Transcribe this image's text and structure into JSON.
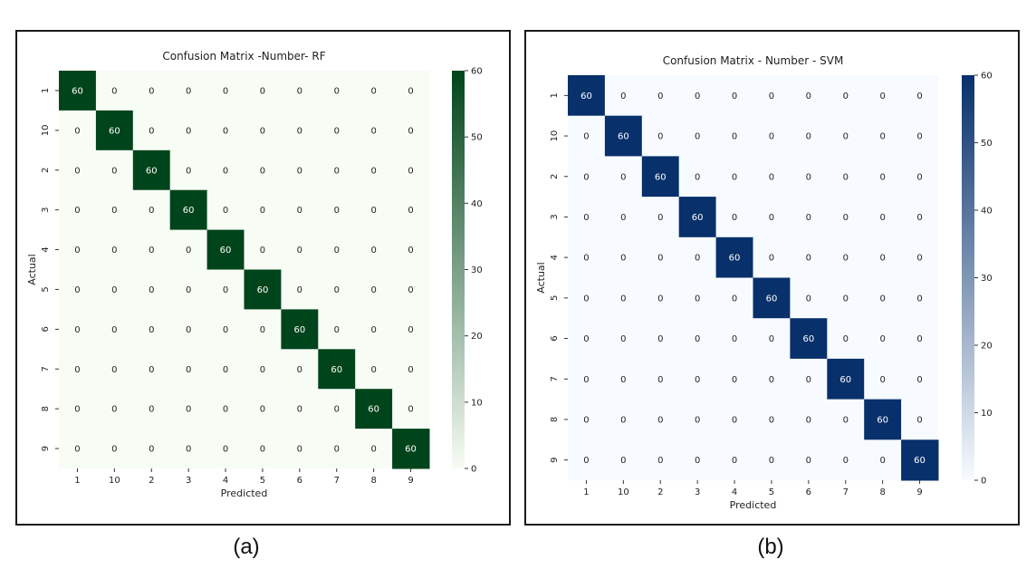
{
  "captions": {
    "a": "(a)",
    "b": "(b)"
  },
  "chart_data": [
    {
      "type": "heatmap",
      "title": "Confusion Matrix -Number- RF",
      "xlabel": "Predicted",
      "ylabel": "Actual",
      "x_categories": [
        "1",
        "10",
        "2",
        "3",
        "4",
        "5",
        "6",
        "7",
        "8",
        "9"
      ],
      "y_categories": [
        "1",
        "10",
        "2",
        "3",
        "4",
        "5",
        "6",
        "7",
        "8",
        "9"
      ],
      "values": [
        [
          60,
          0,
          0,
          0,
          0,
          0,
          0,
          0,
          0,
          0
        ],
        [
          0,
          60,
          0,
          0,
          0,
          0,
          0,
          0,
          0,
          0
        ],
        [
          0,
          0,
          60,
          0,
          0,
          0,
          0,
          0,
          0,
          0
        ],
        [
          0,
          0,
          0,
          60,
          0,
          0,
          0,
          0,
          0,
          0
        ],
        [
          0,
          0,
          0,
          0,
          60,
          0,
          0,
          0,
          0,
          0
        ],
        [
          0,
          0,
          0,
          0,
          0,
          60,
          0,
          0,
          0,
          0
        ],
        [
          0,
          0,
          0,
          0,
          0,
          0,
          60,
          0,
          0,
          0
        ],
        [
          0,
          0,
          0,
          0,
          0,
          0,
          0,
          60,
          0,
          0
        ],
        [
          0,
          0,
          0,
          0,
          0,
          0,
          0,
          0,
          60,
          0
        ],
        [
          0,
          0,
          0,
          0,
          0,
          0,
          0,
          0,
          0,
          60
        ]
      ],
      "colorbar": {
        "min": 0,
        "max": 60,
        "ticks": [
          0,
          10,
          20,
          30,
          40,
          50,
          60
        ]
      },
      "colormap": "Greens",
      "colors": {
        "low": "#f7fcf5",
        "high": "#00441b"
      }
    },
    {
      "type": "heatmap",
      "title": "Confusion Matrix - Number - SVM",
      "xlabel": "Predicted",
      "ylabel": "Actual",
      "x_categories": [
        "1",
        "10",
        "2",
        "3",
        "4",
        "5",
        "6",
        "7",
        "8",
        "9"
      ],
      "y_categories": [
        "1",
        "10",
        "2",
        "3",
        "4",
        "5",
        "6",
        "7",
        "8",
        "9"
      ],
      "values": [
        [
          60,
          0,
          0,
          0,
          0,
          0,
          0,
          0,
          0,
          0
        ],
        [
          0,
          60,
          0,
          0,
          0,
          0,
          0,
          0,
          0,
          0
        ],
        [
          0,
          0,
          60,
          0,
          0,
          0,
          0,
          0,
          0,
          0
        ],
        [
          0,
          0,
          0,
          60,
          0,
          0,
          0,
          0,
          0,
          0
        ],
        [
          0,
          0,
          0,
          0,
          60,
          0,
          0,
          0,
          0,
          0
        ],
        [
          0,
          0,
          0,
          0,
          0,
          60,
          0,
          0,
          0,
          0
        ],
        [
          0,
          0,
          0,
          0,
          0,
          0,
          60,
          0,
          0,
          0
        ],
        [
          0,
          0,
          0,
          0,
          0,
          0,
          0,
          60,
          0,
          0
        ],
        [
          0,
          0,
          0,
          0,
          0,
          0,
          0,
          0,
          60,
          0
        ],
        [
          0,
          0,
          0,
          0,
          0,
          0,
          0,
          0,
          0,
          60
        ]
      ],
      "colorbar": {
        "min": 0,
        "max": 60,
        "ticks": [
          0,
          10,
          20,
          30,
          40,
          50,
          60
        ]
      },
      "colormap": "Blues",
      "colors": {
        "low": "#f7fbff",
        "high": "#08306b"
      }
    }
  ]
}
